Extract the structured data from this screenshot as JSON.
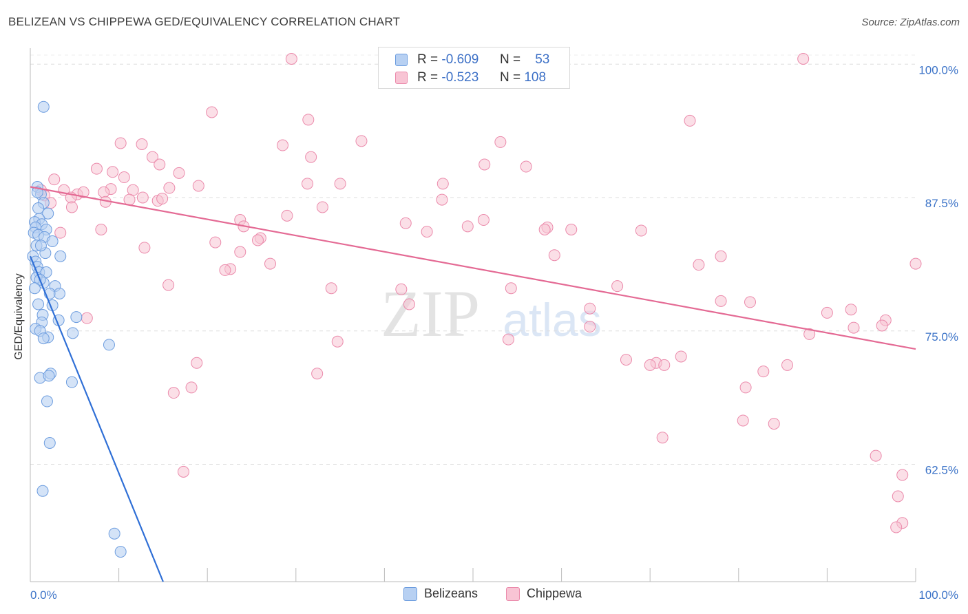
{
  "header": {
    "title": "BELIZEAN VS CHIPPEWA GED/EQUIVALENCY CORRELATION CHART",
    "source": "Source: ZipAtlas.com"
  },
  "legend": {
    "rows": [
      {
        "r_label": "R =",
        "r_value": "-0.609",
        "n_label": "N =",
        "n_value": "53"
      },
      {
        "r_label": "R =",
        "r_value": "-0.523",
        "n_label": "N =",
        "n_value": "108"
      }
    ]
  },
  "bottom_legend": [
    "Belizeans",
    "Chippewa"
  ],
  "watermark": {
    "zip": "ZIP",
    "atlas": "atlas"
  },
  "colors": {
    "belizeans_fill": "#b7d0f2",
    "belizeans_stroke": "#6d9ddf",
    "belizeans_line": "#2f6fd6",
    "chippewa_fill": "#f8c4d4",
    "chippewa_stroke": "#eb8aab",
    "chippewa_line": "#e46a94",
    "tick_label": "#3d74c8"
  },
  "chart_data": {
    "type": "scatter",
    "title": "BELIZEAN VS CHIPPEWA GED/EQUIVALENCY CORRELATION CHART",
    "xlabel": "",
    "ylabel": "GED/Equivalency",
    "xlim": [
      0,
      100
    ],
    "ylim": [
      51.5,
      101.5
    ],
    "x_tick_labels": [
      "0.0%",
      "100.0%"
    ],
    "y_ticks": [
      62.5,
      75.0,
      87.5,
      100.0
    ],
    "y_tick_labels": [
      "62.5%",
      "75.0%",
      "87.5%",
      "100.0%"
    ],
    "grid": true,
    "legend_position": "top-center",
    "series": [
      {
        "name": "Belizeans",
        "r": -0.609,
        "n": 53,
        "trend": {
          "x": [
            0.0,
            15.0
          ],
          "y": [
            82.0,
            51.5
          ]
        },
        "points": [
          [
            1.5,
            96.0
          ],
          [
            0.8,
            88.5
          ],
          [
            1.2,
            87.8
          ],
          [
            1.5,
            87.0
          ],
          [
            0.9,
            86.5
          ],
          [
            2.0,
            86.0
          ],
          [
            1.0,
            85.5
          ],
          [
            0.5,
            85.2
          ],
          [
            1.3,
            85.0
          ],
          [
            0.6,
            84.7
          ],
          [
            1.8,
            84.5
          ],
          [
            0.4,
            84.2
          ],
          [
            0.9,
            84.0
          ],
          [
            1.6,
            83.8
          ],
          [
            2.5,
            83.4
          ],
          [
            0.7,
            83.0
          ],
          [
            3.4,
            82.0
          ],
          [
            1.7,
            82.3
          ],
          [
            0.3,
            82.0
          ],
          [
            0.6,
            81.5
          ],
          [
            0.8,
            81.0
          ],
          [
            1.0,
            80.5
          ],
          [
            1.8,
            80.5
          ],
          [
            1.5,
            79.5
          ],
          [
            2.8,
            79.2
          ],
          [
            0.7,
            80.0
          ],
          [
            1.1,
            79.8
          ],
          [
            0.5,
            79.0
          ],
          [
            2.2,
            78.5
          ],
          [
            3.3,
            78.5
          ],
          [
            0.9,
            77.5
          ],
          [
            2.5,
            77.4
          ],
          [
            1.4,
            76.5
          ],
          [
            5.2,
            76.3
          ],
          [
            3.2,
            76.0
          ],
          [
            1.3,
            75.8
          ],
          [
            0.6,
            75.2
          ],
          [
            1.1,
            75.0
          ],
          [
            4.8,
            74.8
          ],
          [
            2.0,
            74.4
          ],
          [
            1.5,
            74.3
          ],
          [
            8.9,
            73.7
          ],
          [
            2.3,
            71.0
          ],
          [
            1.1,
            70.6
          ],
          [
            2.1,
            70.8
          ],
          [
            4.7,
            70.2
          ],
          [
            1.9,
            68.4
          ],
          [
            2.2,
            64.5
          ],
          [
            1.4,
            60.0
          ],
          [
            9.5,
            56.0
          ],
          [
            10.2,
            54.3
          ],
          [
            0.8,
            88.0
          ],
          [
            1.2,
            83.0
          ]
        ]
      },
      {
        "name": "Chippewa",
        "r": -0.523,
        "n": 108,
        "trend": {
          "x": [
            0.0,
            100.0
          ],
          "y": [
            88.5,
            73.3
          ]
        },
        "points": [
          [
            29.5,
            100.5
          ],
          [
            87.3,
            100.5
          ],
          [
            20.5,
            95.5
          ],
          [
            31.4,
            94.8
          ],
          [
            74.5,
            94.7
          ],
          [
            10.2,
            92.6
          ],
          [
            12.6,
            92.5
          ],
          [
            28.5,
            92.4
          ],
          [
            37.4,
            92.8
          ],
          [
            53.1,
            92.7
          ],
          [
            13.8,
            91.3
          ],
          [
            31.7,
            91.3
          ],
          [
            14.6,
            90.6
          ],
          [
            51.3,
            90.6
          ],
          [
            56.0,
            90.4
          ],
          [
            7.5,
            90.2
          ],
          [
            9.3,
            89.9
          ],
          [
            16.8,
            89.8
          ],
          [
            10.6,
            89.4
          ],
          [
            2.7,
            89.2
          ],
          [
            31.3,
            88.8
          ],
          [
            46.6,
            88.8
          ],
          [
            35.0,
            88.8
          ],
          [
            19.0,
            88.6
          ],
          [
            15.7,
            88.4
          ],
          [
            11.6,
            88.2
          ],
          [
            9.1,
            88.3
          ],
          [
            3.8,
            88.2
          ],
          [
            5.3,
            87.8
          ],
          [
            6.0,
            88.0
          ],
          [
            8.3,
            88.0
          ],
          [
            4.6,
            87.5
          ],
          [
            11.2,
            87.3
          ],
          [
            12.7,
            87.5
          ],
          [
            14.4,
            87.2
          ],
          [
            14.9,
            87.4
          ],
          [
            46.5,
            87.3
          ],
          [
            1.2,
            88.2
          ],
          [
            1.6,
            87.7
          ],
          [
            8.5,
            87.1
          ],
          [
            2.3,
            87.0
          ],
          [
            4.7,
            86.6
          ],
          [
            33.0,
            86.6
          ],
          [
            42.4,
            85.1
          ],
          [
            51.2,
            85.4
          ],
          [
            29.0,
            85.8
          ],
          [
            23.7,
            85.4
          ],
          [
            24.1,
            84.8
          ],
          [
            49.4,
            84.8
          ],
          [
            58.4,
            84.7
          ],
          [
            61.1,
            84.5
          ],
          [
            44.8,
            84.3
          ],
          [
            58.1,
            84.5
          ],
          [
            69.0,
            84.4
          ],
          [
            8.0,
            84.5
          ],
          [
            3.4,
            84.2
          ],
          [
            26.0,
            83.7
          ],
          [
            20.9,
            83.3
          ],
          [
            25.7,
            83.5
          ],
          [
            12.9,
            82.8
          ],
          [
            23.7,
            82.4
          ],
          [
            59.2,
            82.1
          ],
          [
            78.0,
            82.0
          ],
          [
            75.5,
            81.2
          ],
          [
            27.1,
            81.3
          ],
          [
            22.6,
            80.8
          ],
          [
            100.0,
            81.3
          ],
          [
            15.6,
            79.3
          ],
          [
            34.0,
            79.0
          ],
          [
            41.9,
            78.9
          ],
          [
            54.3,
            79.0
          ],
          [
            66.3,
            79.2
          ],
          [
            78.0,
            77.8
          ],
          [
            81.3,
            77.7
          ],
          [
            42.8,
            77.5
          ],
          [
            63.2,
            77.1
          ],
          [
            92.7,
            77.0
          ],
          [
            90.0,
            76.7
          ],
          [
            96.6,
            76.0
          ],
          [
            6.4,
            76.2
          ],
          [
            63.2,
            75.4
          ],
          [
            93.0,
            75.3
          ],
          [
            96.2,
            75.5
          ],
          [
            88.0,
            74.7
          ],
          [
            34.7,
            74.0
          ],
          [
            54.0,
            74.2
          ],
          [
            73.5,
            72.6
          ],
          [
            67.3,
            72.3
          ],
          [
            70.7,
            72.0
          ],
          [
            18.8,
            72.0
          ],
          [
            70.0,
            71.8
          ],
          [
            71.6,
            71.8
          ],
          [
            85.5,
            71.8
          ],
          [
            82.8,
            71.2
          ],
          [
            32.4,
            71.0
          ],
          [
            18.2,
            69.7
          ],
          [
            16.2,
            69.2
          ],
          [
            80.8,
            69.7
          ],
          [
            80.5,
            66.6
          ],
          [
            84.0,
            66.3
          ],
          [
            71.4,
            65.0
          ],
          [
            95.5,
            63.3
          ],
          [
            17.3,
            61.8
          ],
          [
            98.5,
            61.5
          ],
          [
            98.0,
            59.5
          ],
          [
            98.5,
            57.0
          ],
          [
            97.8,
            56.6
          ],
          [
            22.0,
            80.7
          ]
        ]
      }
    ]
  }
}
